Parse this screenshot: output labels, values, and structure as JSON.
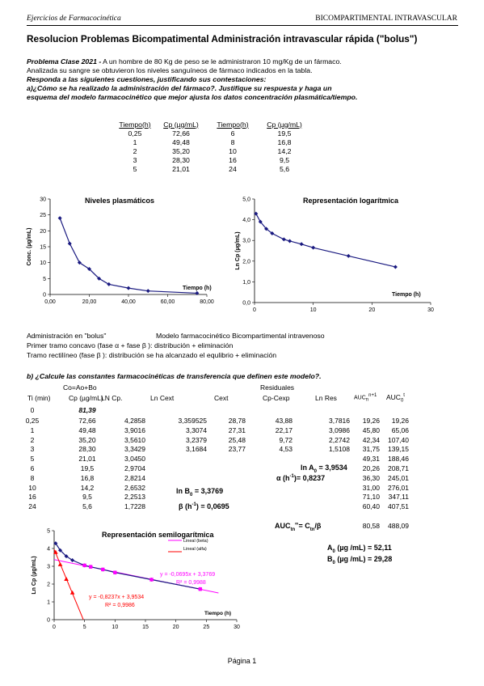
{
  "header": {
    "left": "Ejercicios de Farmacocinética",
    "right": "BICOMPARTIMENTAL INTRAVASCULAR"
  },
  "title": "Resolucion Problemas Bicompatimental Administración intravascular rápida (\"bolus\")",
  "intro": {
    "label": "Problema Clase 2021 -",
    "line1": " A un hombre de 80 Kg de peso se le administraron 10 mg/Kg de un fármaco.",
    "line2": "Analizada su sangre se obtuvieron los niveles sanguíneos de fármaco indicados en la tabla.",
    "line3": "Responda a las siguientes cuestiones, justificando sus contestaciones:",
    "line4": "a)¿Cómo se ha realizado la administración del fármaco?. Justifique su respuesta y haga un",
    "line5": "esquema del modelo farmacocinético que mejor ajusta los datos concentración plasmática/tiempo."
  },
  "table1": {
    "headers": [
      "Tiempo(h)",
      "Cp (µg/mL)",
      "Tiempo(h)",
      "Cp (µg/mL)"
    ],
    "rows": [
      [
        "0,25",
        "72,66",
        "6",
        "19,5"
      ],
      [
        "1",
        "49,48",
        "8",
        "16,8"
      ],
      [
        "2",
        "35,20",
        "10",
        "14,2"
      ],
      [
        "3",
        "28,30",
        "16",
        "9,5"
      ],
      [
        "5",
        "21,01",
        "24",
        "5,6"
      ]
    ]
  },
  "chart_data": [
    {
      "type": "line",
      "title": "Niveles plasmáticos",
      "ylabel": "Conc. (µg/mL)",
      "xlabel": "Tiempo (h)",
      "xlim": [
        0,
        80
      ],
      "ylim": [
        0,
        30
      ],
      "xticks": [
        "0,00",
        "20,00",
        "40,00",
        "60,00",
        "80,00"
      ],
      "yticks": [
        "0",
        "5",
        "10",
        "15",
        "20",
        "25",
        "30"
      ],
      "x": [
        5,
        10,
        15,
        20,
        25,
        30,
        40,
        50,
        75
      ],
      "y": [
        24,
        16,
        10,
        8,
        5,
        3.2,
        2,
        1.1,
        0.4
      ]
    },
    {
      "type": "line",
      "title": "Representación logarítmica",
      "ylabel": "Ln Cp (µg/mL)",
      "xlabel": "Tiempo (h)",
      "xlim": [
        0,
        30
      ],
      "ylim": [
        0,
        5
      ],
      "xticks": [
        "0",
        "10",
        "20",
        "30"
      ],
      "yticks": [
        "0,0",
        "1,0",
        "2,0",
        "3,0",
        "4,0",
        "5,0"
      ],
      "x": [
        0.25,
        1,
        2,
        3,
        5,
        6,
        8,
        10,
        16,
        24
      ],
      "y": [
        4.29,
        3.9,
        3.56,
        3.34,
        3.05,
        2.97,
        2.82,
        2.65,
        2.25,
        1.72
      ]
    },
    {
      "type": "scatter",
      "title": "Representación semilogarítmica",
      "ylabel": "Ln Cp (µg/mL)",
      "xlabel": "Tiempo (h)",
      "xlim": [
        0,
        30
      ],
      "ylim": [
        0,
        5
      ],
      "xticks": [
        "0",
        "5",
        "10",
        "15",
        "20",
        "25",
        "30"
      ],
      "yticks": [
        "0",
        "1",
        "2",
        "3",
        "4",
        "5"
      ],
      "series": [
        {
          "name": "Lineal (beta)",
          "color": "#ff00ff",
          "x": [
            0,
            27
          ],
          "y": [
            3.3769,
            1.5004
          ]
        },
        {
          "name": "Lineal (alfa)",
          "color": "#ff0000",
          "x": [
            0,
            4.8
          ],
          "y": [
            3.9534,
            0
          ]
        },
        {
          "name": "",
          "color": "#1a1a80",
          "x": [
            0.25,
            1,
            2,
            3,
            5,
            6,
            8,
            10,
            16,
            24
          ],
          "y": [
            4.29,
            3.9,
            3.56,
            3.34,
            3.05,
            2.97,
            2.82,
            2.65,
            2.25,
            1.72
          ]
        },
        {
          "name": "",
          "color": "#ff00ff",
          "x": [
            5,
            6,
            8,
            10,
            16,
            24
          ],
          "y": [
            3.05,
            2.97,
            2.82,
            2.65,
            2.25,
            1.72
          ]
        },
        {
          "name": "",
          "color": "#ff0000",
          "x": [
            0.25,
            1,
            2,
            3
          ],
          "y": [
            3.7816,
            3.0986,
            2.2742,
            1.5108
          ]
        }
      ],
      "annotations": [
        "y = -0,0695x + 3,3769",
        "R² = 0,9988",
        "y = -0,8237x + 3,9534",
        "R² = 0,9986"
      ]
    }
  ],
  "model": {
    "l1a": "Administración en \"bolus\"",
    "l1b": "Modelo farmacocinético Bicompartimental intravenoso",
    "l2": "Primer tramo concavo (fase α + fase β ): distribución + eliminación",
    "l3": "Tramo rectilíneo (fase β ): distribución se ha alcanzado el equlibrio + eliminación"
  },
  "partb": "b) ¿Calcule las constantes farmacocinéticas de transferencia que definen este modelo?.",
  "table2": {
    "top": "Co=Ao+Bo",
    "residuales": "Residuales",
    "headers": [
      "Ti (min)",
      "Cp (µg/mL)",
      "LN Cp.",
      "Ln Cext",
      "Cext",
      "Cp-Cexp",
      "Ln Res"
    ],
    "auc_h1": "AUC",
    "auc_h1s": "n",
    "auc_h1p": "n+1",
    "auc_h2": "AUC",
    "auc_h2s": "0",
    "auc_h2p": "t",
    "row0": {
      "t": "0",
      "cp": "81,39"
    },
    "rows": [
      [
        "0,25",
        "72,66",
        "4,2858",
        "3,359525",
        "28,78",
        "43,88",
        "3,7816",
        "19,26",
        "19,26"
      ],
      [
        "1",
        "49,48",
        "3,9016",
        "3,3074",
        "27,31",
        "22,17",
        "3,0986",
        "45,80",
        "65,06"
      ],
      [
        "2",
        "35,20",
        "3,5610",
        "3,2379",
        "25,48",
        "9,72",
        "2,2742",
        "42,34",
        "107,40"
      ],
      [
        "3",
        "28,30",
        "3,3429",
        "3,1684",
        "23,77",
        "4,53",
        "1,5108",
        "31,75",
        "139,15"
      ],
      [
        "5",
        "21,01",
        "3,0450",
        "",
        "",
        "",
        "",
        "49,31",
        "188,46"
      ],
      [
        "6",
        "19,5",
        "2,9704",
        "",
        "",
        "",
        "",
        "20,26",
        "208,71"
      ],
      [
        "8",
        "16,8",
        "2,8214",
        "",
        "",
        "",
        "",
        "36,30",
        "245,01"
      ],
      [
        "10",
        "14,2",
        "2,6532",
        "",
        "",
        "",
        "",
        "31,00",
        "276,01"
      ],
      [
        "16",
        "9,5",
        "2,2513",
        "",
        "",
        "",
        "",
        "71,10",
        "347,11"
      ],
      [
        "24",
        "5,6",
        "1,7228",
        "",
        "",
        "",
        "",
        "60,40",
        "407,51"
      ]
    ],
    "lnA0": "ln A",
    "lnA0s": "0",
    "lnA0v": "= 3,9534",
    "alpha": "α (h",
    "alphap": "-1",
    "alphav": ")= 0,8237",
    "lnB0": "ln B",
    "lnB0s": "0",
    "lnB0v": "= 3,3769",
    "beta": "β  (h",
    "betap": "-1",
    "betav": ") = 0,0695",
    "aucinf": "AUC",
    "aucinfs": "tn",
    "aucinfp": "∞",
    "aucinfv": "= C",
    "aucinfv2": "tn",
    "aucinfv3": "/β",
    "auc_last": [
      "80,58",
      "488,09"
    ]
  },
  "results": {
    "A0": "A",
    "A0s": "0",
    "A0v": " (µg /mL) = 52,11",
    "B0": "B",
    "B0s": "0",
    "B0v": " (µg /mL) = 29,28"
  },
  "footer": "Página 1"
}
